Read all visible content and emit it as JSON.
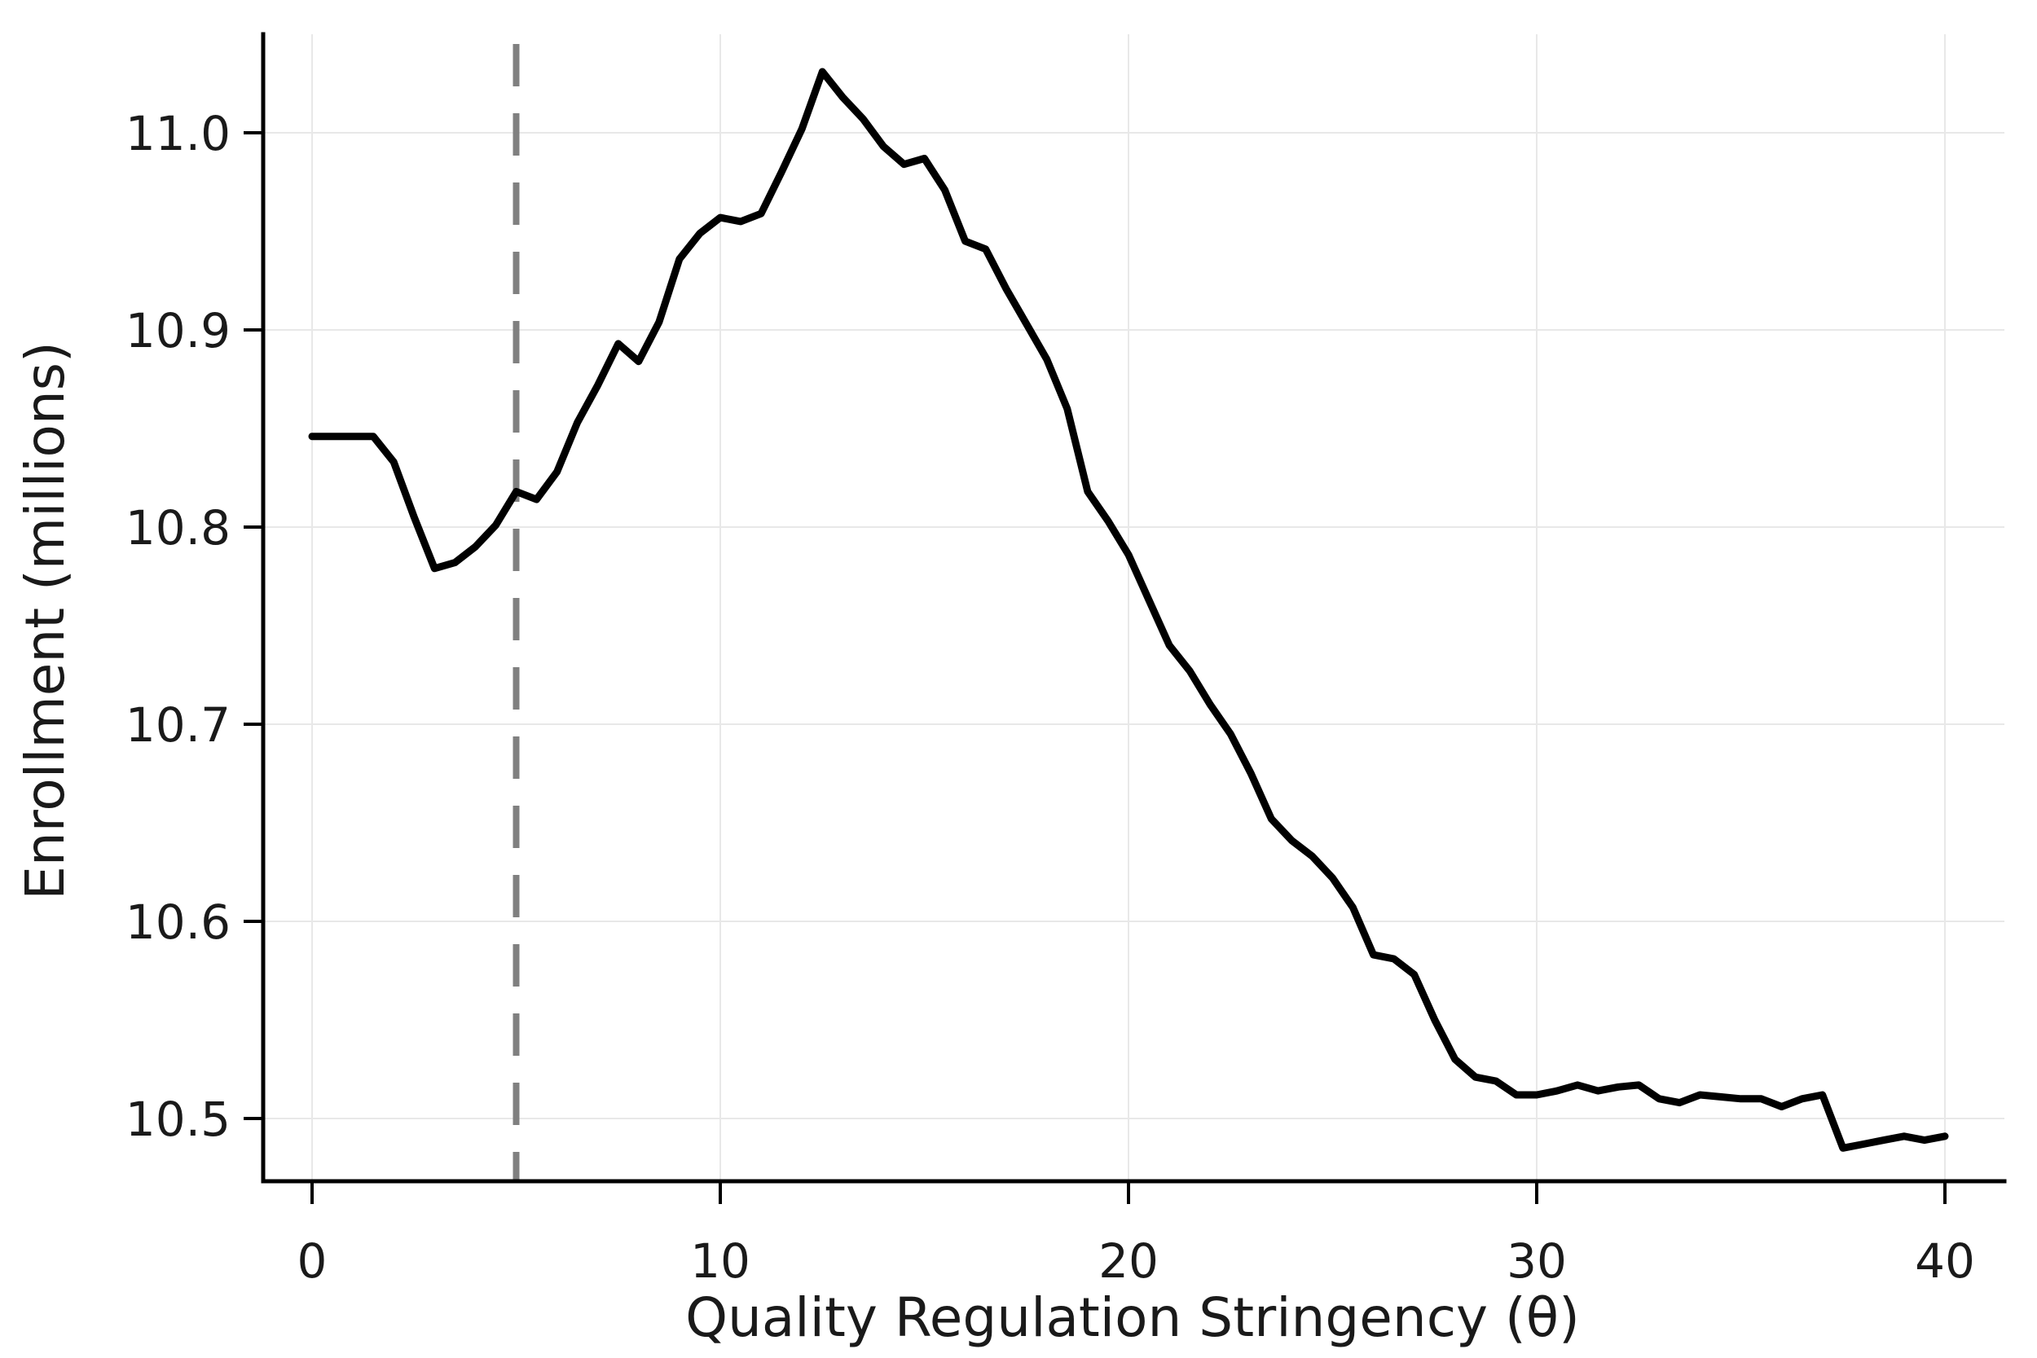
{
  "chart_data": {
    "type": "line",
    "title": "",
    "xlabel": "Quality Regulation Stringency (θ)",
    "ylabel": "Enrollment (millions)",
    "xlim": [
      0,
      40
    ],
    "ylim": [
      10.5,
      11.0
    ],
    "grid": true,
    "legend_position": "none",
    "xtick_values": [
      0,
      10,
      20,
      30,
      40
    ],
    "xtick_labels": [
      "0",
      "10",
      "20",
      "30",
      "40"
    ],
    "ytick_values": [
      10.5,
      10.6,
      10.7,
      10.8,
      10.9,
      11.0
    ],
    "ytick_labels": [
      "10.5",
      "10.6",
      "10.7",
      "10.8",
      "10.9",
      "11.0"
    ],
    "series": [
      {
        "name": "enrollment",
        "color": "#000000",
        "stroke_width": 9,
        "x": [
          0,
          0.5,
          1,
          1.5,
          2,
          2.5,
          3,
          3.5,
          4,
          4.5,
          5,
          5.5,
          6,
          6.5,
          7,
          7.5,
          8,
          8.5,
          9,
          9.5,
          10,
          10.5,
          11,
          11.5,
          12,
          12.5,
          13,
          13.5,
          14,
          14.5,
          15,
          15.5,
          16,
          16.5,
          17,
          17.5,
          18,
          18.5,
          19,
          19.5,
          20,
          20.5,
          21,
          21.5,
          22,
          22.5,
          23,
          23.5,
          24,
          24.5,
          25,
          25.5,
          26,
          26.5,
          27,
          27.5,
          28,
          28.5,
          29,
          29.5,
          30,
          30.5,
          31,
          31.5,
          32,
          32.5,
          33,
          33.5,
          34,
          34.5,
          35,
          35.5,
          36,
          36.5,
          37,
          37.5,
          38,
          38.5,
          39,
          39.5,
          40
        ],
        "y": [
          10.846,
          10.846,
          10.846,
          10.846,
          10.833,
          10.805,
          10.779,
          10.782,
          10.79,
          10.801,
          10.818,
          10.814,
          10.828,
          10.853,
          10.872,
          10.893,
          10.884,
          10.904,
          10.936,
          10.949,
          10.957,
          10.955,
          10.959,
          10.98,
          11.002,
          11.031,
          11.018,
          11.007,
          10.993,
          10.984,
          10.987,
          10.971,
          10.945,
          10.941,
          10.921,
          10.903,
          10.885,
          10.86,
          10.818,
          10.803,
          10.786,
          10.763,
          10.74,
          10.727,
          10.71,
          10.695,
          10.675,
          10.652,
          10.641,
          10.633,
          10.622,
          10.607,
          10.583,
          10.581,
          10.573,
          10.55,
          10.53,
          10.521,
          10.519,
          10.512,
          10.512,
          10.514,
          10.517,
          10.514,
          10.516,
          10.517,
          10.51,
          10.508,
          10.512,
          10.511,
          10.51,
          10.51,
          10.506,
          10.51,
          10.512,
          10.485,
          10.487,
          10.489,
          10.491,
          10.489,
          10.491
        ]
      }
    ],
    "reference_lines": [
      {
        "name": "theta-threshold",
        "orientation": "vertical",
        "x": 5,
        "color": "#808080",
        "stroke_width": 8,
        "dash": "52 33"
      }
    ]
  }
}
